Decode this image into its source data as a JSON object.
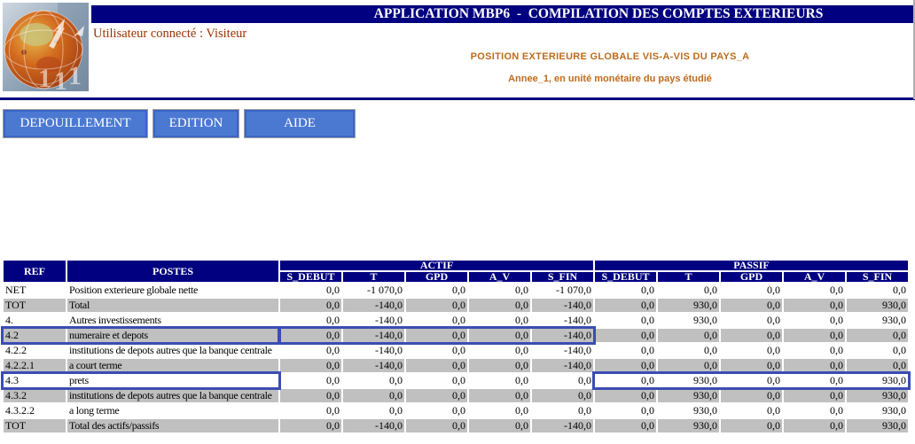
{
  "app": {
    "title": "APPLICATION MBP6  -  COMPILATION DES COMPTES EXTERIEURS"
  },
  "header": {
    "user_label": "Utilisateur connecté : Visiteur",
    "report_title": "POSITION EXTERIEURE GLOBALE VIS-A-VIS DU PAYS_A",
    "report_subtitle": "Annee_1, en unité monétaire du pays étudié",
    "logo_icon": "globe-icon"
  },
  "menu": {
    "buttons": [
      {
        "label": "DEPOUILLEMENT"
      },
      {
        "label": "EDITION"
      },
      {
        "label": "AIDE"
      }
    ]
  },
  "table": {
    "headers": {
      "ref": "REF",
      "postes": "POSTES",
      "actif": "ACTIF",
      "passif": "PASSIF"
    },
    "sub_headers": [
      "S_DEBUT",
      "T",
      "GPD",
      "A_V",
      "S_FIN"
    ],
    "rows": [
      {
        "ref": "NET",
        "poste": "Position exterieure globale nette",
        "actif": [
          "0,0",
          "-1 070,0",
          "0,0",
          "0,0",
          "-1 070,0"
        ],
        "passif": [
          "0,0",
          "0,0",
          "0,0",
          "0,0",
          "0,0"
        ]
      },
      {
        "ref": "TOT",
        "poste": "Total",
        "actif": [
          "0,0",
          "-140,0",
          "0,0",
          "0,0",
          "-140,0"
        ],
        "passif": [
          "0,0",
          "930,0",
          "0,0",
          "0,0",
          "930,0"
        ]
      },
      {
        "ref": "4.",
        "poste": "Autres investissements",
        "actif": [
          "0,0",
          "-140,0",
          "0,0",
          "0,0",
          "-140,0"
        ],
        "passif": [
          "0,0",
          "930,0",
          "0,0",
          "0,0",
          "930,0"
        ]
      },
      {
        "ref": "4.2",
        "poste": "numeraire et depots",
        "actif": [
          "0,0",
          "-140,0",
          "0,0",
          "0,0",
          "-140,0"
        ],
        "passif": [
          "0,0",
          "0,0",
          "0,0",
          "0,0",
          "0,0"
        ]
      },
      {
        "ref": "4.2.2",
        "poste": "institutions de depots autres que la banque centrale",
        "actif": [
          "0,0",
          "-140,0",
          "0,0",
          "0,0",
          "-140,0"
        ],
        "passif": [
          "0,0",
          "0,0",
          "0,0",
          "0,0",
          "0,0"
        ]
      },
      {
        "ref": "4.2.2.1",
        "poste": "a court terme",
        "actif": [
          "0,0",
          "-140,0",
          "0,0",
          "0,0",
          "-140,0"
        ],
        "passif": [
          "0,0",
          "0,0",
          "0,0",
          "0,0",
          "0,0"
        ]
      },
      {
        "ref": "4.3",
        "poste": "prets",
        "actif": [
          "0,0",
          "0,0",
          "0,0",
          "0,0",
          "0,0"
        ],
        "passif": [
          "0,0",
          "930,0",
          "0,0",
          "0,0",
          "930,0"
        ]
      },
      {
        "ref": "4.3.2",
        "poste": "institutions de depots autres que la banque centrale",
        "actif": [
          "0,0",
          "0,0",
          "0,0",
          "0,0",
          "0,0"
        ],
        "passif": [
          "0,0",
          "930,0",
          "0,0",
          "0,0",
          "930,0"
        ]
      },
      {
        "ref": "4.3.2.2",
        "poste": "a long terme",
        "actif": [
          "0,0",
          "0,0",
          "0,0",
          "0,0",
          "0,0"
        ],
        "passif": [
          "0,0",
          "930,0",
          "0,0",
          "0,0",
          "930,0"
        ]
      },
      {
        "ref": "TOT",
        "poste": "Total des actifs/passifs",
        "actif": [
          "0,0",
          "-140,0",
          "0,0",
          "0,0",
          "-140,0"
        ],
        "passif": [
          "0,0",
          "930,0",
          "0,0",
          "0,0",
          "930,0"
        ]
      }
    ],
    "highlights": [
      {
        "row": 3,
        "from_col": 0,
        "to_col": 1
      },
      {
        "row": 3,
        "from_col": 2,
        "to_col": 6
      },
      {
        "row": 6,
        "from_col": 0,
        "to_col": 1
      },
      {
        "row": 6,
        "from_col": 7,
        "to_col": 11
      }
    ]
  },
  "colors": {
    "navy": "#000080",
    "row_alt": "#C0C0C0",
    "highlight_border": "#3B4DB3",
    "button_fill": "#4B79D2",
    "report_title_color": "#BE6B1C",
    "user_text_color": "#993300"
  }
}
